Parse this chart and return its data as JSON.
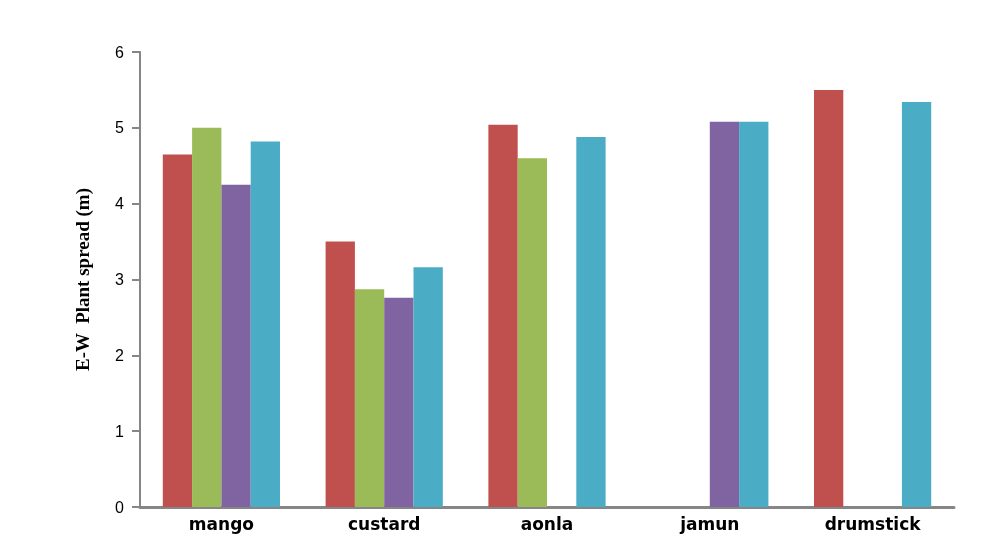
{
  "chart_data": {
    "type": "bar",
    "ylabel": "E-W  Plant spread (m)",
    "categories": [
      "mango",
      "custard",
      "aonla",
      "jamun",
      "drumstick"
    ],
    "series": [
      {
        "color": "#c0504d",
        "values": [
          4.65,
          3.5,
          5.04,
          null,
          5.5
        ]
      },
      {
        "color": "#9bbb59",
        "values": [
          5.0,
          2.87,
          4.6,
          0,
          0
        ]
      },
      {
        "color": "#8064a2",
        "values": [
          4.25,
          2.76,
          0,
          5.08,
          0
        ]
      },
      {
        "color": "#4bacc6",
        "values": [
          4.82,
          3.16,
          4.88,
          5.08,
          5.34
        ]
      }
    ],
    "ylim": [
      0,
      6
    ],
    "yticks": [
      0,
      1,
      2,
      3,
      4,
      5,
      6
    ]
  }
}
